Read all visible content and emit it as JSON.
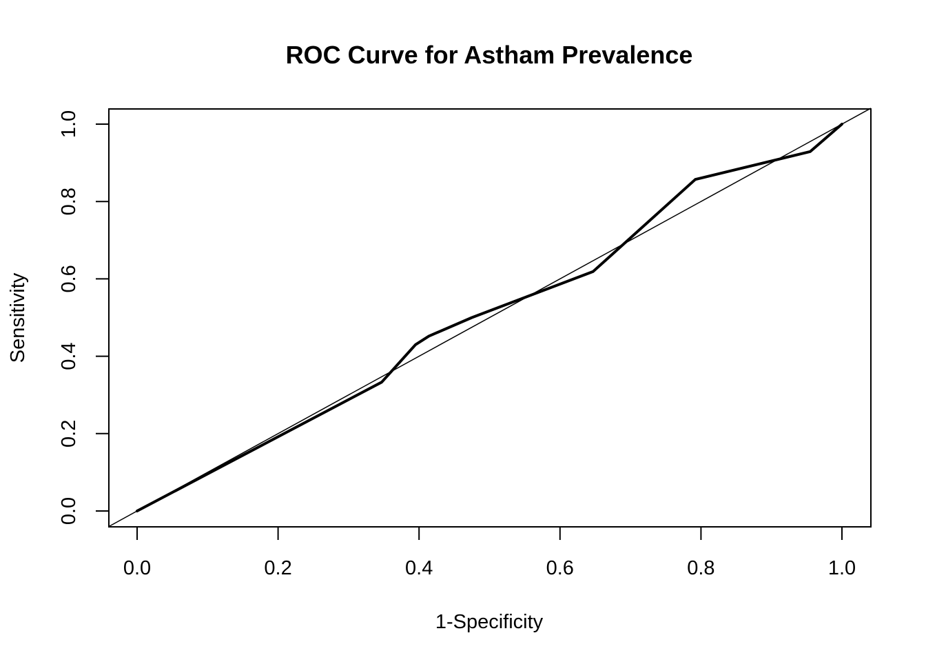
{
  "chart_data": {
    "type": "line",
    "title": "ROC Curve for Astham Prevalence",
    "xlabel": "1-Specificity",
    "ylabel": "Sensitivity",
    "xlim": [
      0.0,
      1.0
    ],
    "ylim": [
      0.0,
      1.0
    ],
    "xticks": [
      "0.0",
      "0.2",
      "0.4",
      "0.6",
      "0.8",
      "1.0"
    ],
    "yticks": [
      "0.0",
      "0.2",
      "0.4",
      "0.6",
      "0.8",
      "1.0"
    ],
    "grid": false,
    "legend": "none",
    "series": [
      {
        "x": [
          0.0,
          0.347,
          0.395,
          0.414,
          0.475,
          0.647,
          0.792,
          0.955,
          1.0
        ],
        "y": [
          0.0,
          0.333,
          0.43,
          0.452,
          0.5,
          0.619,
          0.857,
          0.929,
          1.0
        ],
        "color": "#000000"
      }
    ],
    "reference_line": {
      "x": [
        0.0,
        1.0
      ],
      "y": [
        0.0,
        1.0
      ],
      "color": "#000000"
    }
  }
}
